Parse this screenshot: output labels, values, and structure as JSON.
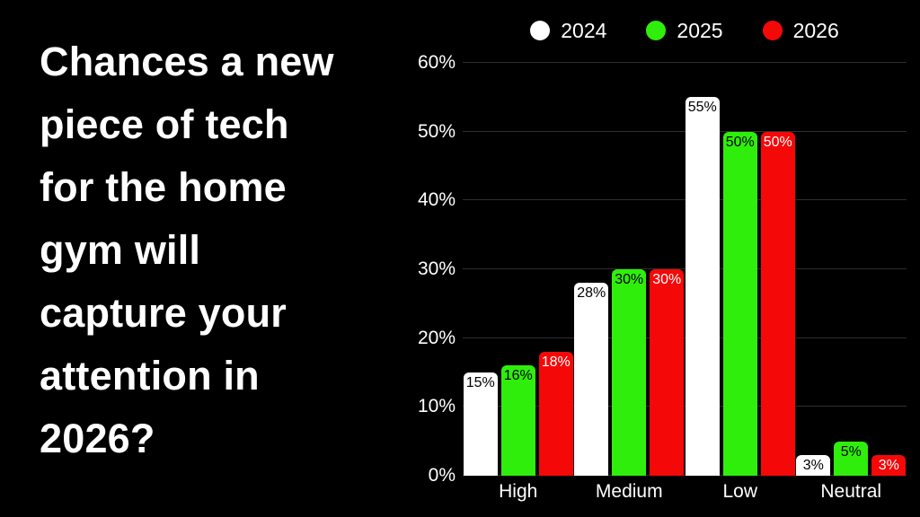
{
  "background": "#000000",
  "title": {
    "color": "#ffffff",
    "lines": [
      "Chances a new",
      "piece of tech",
      "for the home",
      "gym will",
      "capture your",
      "attention in",
      "2026?"
    ]
  },
  "chart_data": {
    "type": "bar",
    "title": "Chances a new piece of tech for the home gym will capture your attention in 2026?",
    "categories": [
      "High",
      "Medium",
      "Low",
      "Neutral"
    ],
    "series": [
      {
        "name": "2024",
        "color": "#ffffff",
        "label_color": "#000000",
        "values": [
          15,
          28,
          55,
          3
        ]
      },
      {
        "name": "2025",
        "color": "#2fee0c",
        "label_color": "#000000",
        "values": [
          16,
          30,
          50,
          5
        ]
      },
      {
        "name": "2026",
        "color": "#f50808",
        "label_color": "#ffffff",
        "values": [
          18,
          30,
          50,
          3
        ]
      }
    ],
    "xlabel": "",
    "ylabel": "",
    "ylim": [
      0,
      60
    ],
    "yticks": [
      0,
      10,
      20,
      30,
      40,
      50,
      60
    ],
    "ytick_suffix": "%",
    "value_suffix": "%",
    "grid": true,
    "gridline_color": "#2e2e2e",
    "axis_text_color": "#ffffff",
    "legend_position": "top"
  }
}
